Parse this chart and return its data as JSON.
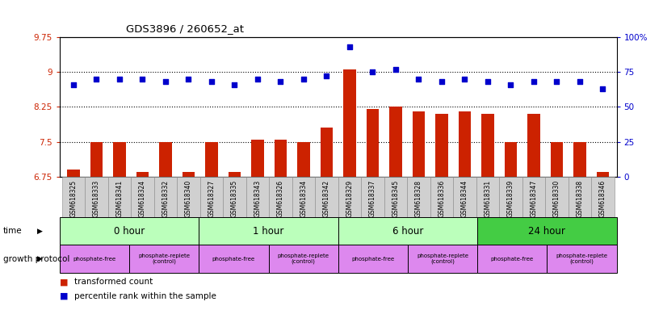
{
  "title": "GDS3896 / 260652_at",
  "samples": [
    "GSM618325",
    "GSM618333",
    "GSM618341",
    "GSM618324",
    "GSM618332",
    "GSM618340",
    "GSM618327",
    "GSM618335",
    "GSM618343",
    "GSM618326",
    "GSM618334",
    "GSM618342",
    "GSM618329",
    "GSM618337",
    "GSM618345",
    "GSM618328",
    "GSM618336",
    "GSM618344",
    "GSM618331",
    "GSM618339",
    "GSM618347",
    "GSM618330",
    "GSM618338",
    "GSM618346"
  ],
  "bar_values": [
    6.9,
    7.5,
    7.5,
    6.85,
    7.5,
    6.85,
    7.5,
    6.85,
    7.55,
    7.55,
    7.5,
    7.8,
    9.05,
    8.2,
    8.25,
    8.15,
    8.1,
    8.15,
    8.1,
    7.5,
    8.1,
    7.5,
    7.5,
    6.85
  ],
  "dot_values": [
    66,
    70,
    70,
    70,
    68,
    70,
    68,
    66,
    70,
    68,
    70,
    72,
    93,
    75,
    77,
    70,
    68,
    70,
    68,
    66,
    68,
    68,
    68,
    63
  ],
  "ylim_left": [
    6.75,
    9.75
  ],
  "ylim_right": [
    0,
    100
  ],
  "yticks_left": [
    6.75,
    7.5,
    8.25,
    9.0,
    9.75
  ],
  "yticks_right": [
    0,
    25,
    50,
    75,
    100
  ],
  "ytick_labels_left": [
    "6.75",
    "7.5",
    "8.25",
    "9",
    "9.75"
  ],
  "ytick_labels_right": [
    "0",
    "25",
    "50",
    "75",
    "100%"
  ],
  "hlines": [
    7.5,
    8.25,
    9.0
  ],
  "bar_color": "#cc2200",
  "dot_color": "#0000cc",
  "bg_color": "#ffffff",
  "sample_label_bg": "#d0d0d0",
  "time_groups": [
    {
      "label": "0 hour",
      "count": 6,
      "color": "#bbffbb"
    },
    {
      "label": "1 hour",
      "count": 6,
      "color": "#bbffbb"
    },
    {
      "label": "6 hour",
      "count": 6,
      "color": "#bbffbb"
    },
    {
      "label": "24 hour",
      "count": 6,
      "color": "#44cc44"
    }
  ],
  "growth_groups": [
    {
      "label": "phosphate-free",
      "count": 3
    },
    {
      "label": "phosphate-replete\n(control)",
      "count": 3
    },
    {
      "label": "phosphate-free",
      "count": 3
    },
    {
      "label": "phosphate-replete\n(control)",
      "count": 3
    },
    {
      "label": "phosphate-free",
      "count": 3
    },
    {
      "label": "phosphate-replete\n(control)",
      "count": 3
    },
    {
      "label": "phosphate-free",
      "count": 3
    },
    {
      "label": "phosphate-replete\n(control)",
      "count": 3
    }
  ],
  "growth_color": "#dd88ee",
  "legend_bar_label": "transformed count",
  "legend_dot_label": "percentile rank within the sample",
  "time_label": "time",
  "growth_label": "growth protocol"
}
